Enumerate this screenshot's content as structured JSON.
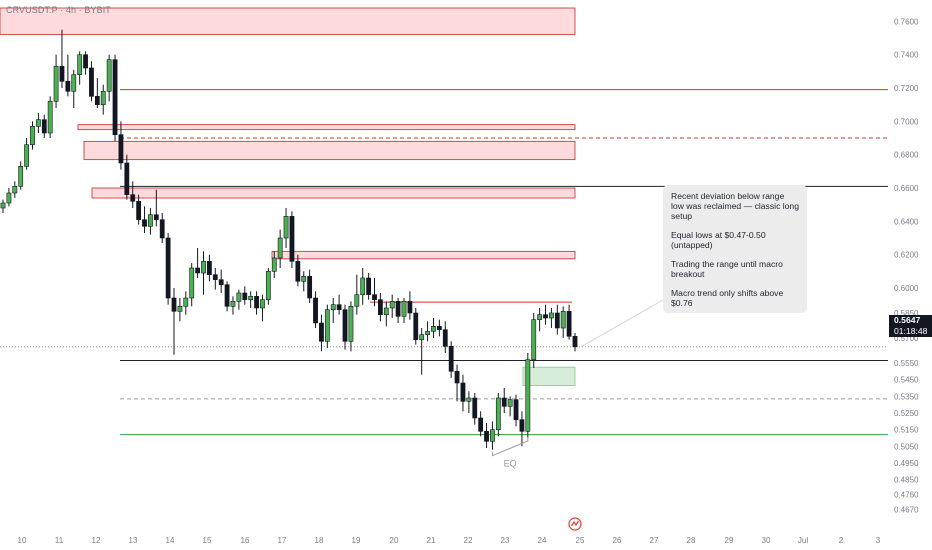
{
  "symbol": "CRVUSDT.P · 4h · BYBIT",
  "colors": {
    "up": "#26a69a",
    "candle_up": "#4caf50",
    "down": "#131722",
    "red_line": "#d32f2f",
    "green_line": "#2e9e3f",
    "zone_red_fill": "rgba(242,54,69,0.18)",
    "zone_green_fill": "rgba(76,175,80,0.22)",
    "last_price": "#131722"
  },
  "annotations": {
    "eq_label": "EQ",
    "callout": [
      "Recent deviation below range low was reclaimed — classic long setup",
      "Equal lows at $0.47-0.50 (untapped)",
      "Trading the range until macro breakout",
      " Macro trend only shifts above $0.76"
    ],
    "last_price": "0.5647",
    "countdown": "01:18:48"
  },
  "chart_data": {
    "type": "candlestick",
    "title": "CRVUSDT.P · 4h · BYBIT",
    "y_axis": {
      "ticks": [
        "0.7600",
        "0.7400",
        "0.7200",
        "0.7000",
        "0.6800",
        "0.6600",
        "0.6400",
        "0.6200",
        "0.6000",
        "0.5850",
        "0.5700",
        "0.5550",
        "0.5450",
        "0.5350",
        "0.5250",
        "0.5150",
        "0.5050",
        "0.4950",
        "0.4850",
        "0.4760",
        "0.4670"
      ],
      "range": [
        0.462,
        0.768
      ]
    },
    "x_axis": {
      "ticks": [
        "10",
        "11",
        "12",
        "13",
        "14",
        "15",
        "16",
        "17",
        "18",
        "19",
        "20",
        "21",
        "22",
        "23",
        "24",
        "25",
        "26",
        "27",
        "28",
        "29",
        "30",
        "Jul",
        "2",
        "3"
      ]
    },
    "grid": false,
    "horizontal_levels": [
      {
        "price": 0.719,
        "style": "solid",
        "color": "red"
      },
      {
        "price": 0.69,
        "style": "dashed",
        "color": "red"
      },
      {
        "price": 0.661,
        "style": "solid",
        "color": "black"
      },
      {
        "price": 0.5565,
        "style": "solid",
        "color": "black"
      },
      {
        "price": 0.5335,
        "style": "dashed",
        "color": "gray"
      },
      {
        "price": 0.512,
        "style": "solid",
        "color": "green"
      },
      {
        "price": 0.5915,
        "style": "solid",
        "color": "red",
        "short": true
      }
    ],
    "zones": [
      {
        "kind": "supply",
        "top": 0.768,
        "bottom": 0.752
      },
      {
        "kind": "supply",
        "top": 0.698,
        "bottom": 0.695
      },
      {
        "kind": "supply",
        "top": 0.688,
        "bottom": 0.677
      },
      {
        "kind": "supply",
        "top": 0.66,
        "bottom": 0.654
      },
      {
        "kind": "supply",
        "top": 0.622,
        "bottom": 0.6175
      },
      {
        "kind": "demand",
        "top": 0.5525,
        "bottom": 0.5415
      }
    ],
    "candles": [
      {
        "o": 0.648,
        "h": 0.653,
        "l": 0.645,
        "c": 0.651
      },
      {
        "o": 0.651,
        "h": 0.66,
        "l": 0.649,
        "c": 0.657
      },
      {
        "o": 0.657,
        "h": 0.664,
        "l": 0.654,
        "c": 0.661
      },
      {
        "o": 0.661,
        "h": 0.676,
        "l": 0.659,
        "c": 0.673
      },
      {
        "o": 0.673,
        "h": 0.69,
        "l": 0.671,
        "c": 0.686
      },
      {
        "o": 0.686,
        "h": 0.7,
        "l": 0.683,
        "c": 0.697
      },
      {
        "o": 0.697,
        "h": 0.705,
        "l": 0.693,
        "c": 0.701
      },
      {
        "o": 0.701,
        "h": 0.704,
        "l": 0.69,
        "c": 0.693
      },
      {
        "o": 0.693,
        "h": 0.715,
        "l": 0.69,
        "c": 0.712
      },
      {
        "o": 0.712,
        "h": 0.74,
        "l": 0.708,
        "c": 0.733
      },
      {
        "o": 0.733,
        "h": 0.755,
        "l": 0.72,
        "c": 0.724
      },
      {
        "o": 0.724,
        "h": 0.74,
        "l": 0.715,
        "c": 0.718
      },
      {
        "o": 0.718,
        "h": 0.731,
        "l": 0.708,
        "c": 0.728
      },
      {
        "o": 0.728,
        "h": 0.742,
        "l": 0.722,
        "c": 0.74
      },
      {
        "o": 0.74,
        "h": 0.742,
        "l": 0.728,
        "c": 0.732
      },
      {
        "o": 0.732,
        "h": 0.736,
        "l": 0.712,
        "c": 0.715
      },
      {
        "o": 0.715,
        "h": 0.726,
        "l": 0.708,
        "c": 0.71
      },
      {
        "o": 0.71,
        "h": 0.722,
        "l": 0.704,
        "c": 0.718
      },
      {
        "o": 0.718,
        "h": 0.74,
        "l": 0.712,
        "c": 0.737
      },
      {
        "o": 0.737,
        "h": 0.74,
        "l": 0.688,
        "c": 0.692
      },
      {
        "o": 0.692,
        "h": 0.7,
        "l": 0.671,
        "c": 0.675
      },
      {
        "o": 0.675,
        "h": 0.68,
        "l": 0.653,
        "c": 0.656
      },
      {
        "o": 0.656,
        "h": 0.664,
        "l": 0.648,
        "c": 0.652
      },
      {
        "o": 0.652,
        "h": 0.656,
        "l": 0.638,
        "c": 0.641
      },
      {
        "o": 0.641,
        "h": 0.649,
        "l": 0.633,
        "c": 0.637
      },
      {
        "o": 0.637,
        "h": 0.648,
        "l": 0.632,
        "c": 0.644
      },
      {
        "o": 0.644,
        "h": 0.659,
        "l": 0.637,
        "c": 0.641
      },
      {
        "o": 0.641,
        "h": 0.645,
        "l": 0.627,
        "c": 0.63
      },
      {
        "o": 0.63,
        "h": 0.633,
        "l": 0.59,
        "c": 0.594
      },
      {
        "o": 0.594,
        "h": 0.6,
        "l": 0.56,
        "c": 0.586
      },
      {
        "o": 0.586,
        "h": 0.594,
        "l": 0.58,
        "c": 0.589
      },
      {
        "o": 0.589,
        "h": 0.598,
        "l": 0.584,
        "c": 0.594
      },
      {
        "o": 0.594,
        "h": 0.615,
        "l": 0.589,
        "c": 0.612
      },
      {
        "o": 0.612,
        "h": 0.624,
        "l": 0.606,
        "c": 0.609
      },
      {
        "o": 0.609,
        "h": 0.622,
        "l": 0.596,
        "c": 0.616
      },
      {
        "o": 0.616,
        "h": 0.62,
        "l": 0.604,
        "c": 0.608
      },
      {
        "o": 0.608,
        "h": 0.612,
        "l": 0.599,
        "c": 0.605
      },
      {
        "o": 0.605,
        "h": 0.611,
        "l": 0.597,
        "c": 0.602
      },
      {
        "o": 0.602,
        "h": 0.604,
        "l": 0.586,
        "c": 0.589
      },
      {
        "o": 0.589,
        "h": 0.595,
        "l": 0.584,
        "c": 0.592
      },
      {
        "o": 0.592,
        "h": 0.599,
        "l": 0.587,
        "c": 0.597
      },
      {
        "o": 0.597,
        "h": 0.601,
        "l": 0.59,
        "c": 0.593
      },
      {
        "o": 0.593,
        "h": 0.598,
        "l": 0.588,
        "c": 0.595
      },
      {
        "o": 0.595,
        "h": 0.598,
        "l": 0.584,
        "c": 0.588
      },
      {
        "o": 0.588,
        "h": 0.596,
        "l": 0.58,
        "c": 0.593
      },
      {
        "o": 0.593,
        "h": 0.612,
        "l": 0.59,
        "c": 0.61
      },
      {
        "o": 0.61,
        "h": 0.622,
        "l": 0.606,
        "c": 0.618
      },
      {
        "o": 0.618,
        "h": 0.635,
        "l": 0.612,
        "c": 0.63
      },
      {
        "o": 0.63,
        "h": 0.648,
        "l": 0.624,
        "c": 0.643
      },
      {
        "o": 0.643,
        "h": 0.646,
        "l": 0.612,
        "c": 0.616
      },
      {
        "o": 0.616,
        "h": 0.62,
        "l": 0.601,
        "c": 0.604
      },
      {
        "o": 0.604,
        "h": 0.61,
        "l": 0.598,
        "c": 0.607
      },
      {
        "o": 0.607,
        "h": 0.611,
        "l": 0.591,
        "c": 0.594
      },
      {
        "o": 0.594,
        "h": 0.598,
        "l": 0.576,
        "c": 0.579
      },
      {
        "o": 0.579,
        "h": 0.584,
        "l": 0.562,
        "c": 0.568
      },
      {
        "o": 0.568,
        "h": 0.59,
        "l": 0.564,
        "c": 0.587
      },
      {
        "o": 0.587,
        "h": 0.594,
        "l": 0.579,
        "c": 0.59
      },
      {
        "o": 0.59,
        "h": 0.596,
        "l": 0.584,
        "c": 0.587
      },
      {
        "o": 0.587,
        "h": 0.59,
        "l": 0.563,
        "c": 0.568
      },
      {
        "o": 0.568,
        "h": 0.592,
        "l": 0.562,
        "c": 0.589
      },
      {
        "o": 0.589,
        "h": 0.608,
        "l": 0.584,
        "c": 0.596
      },
      {
        "o": 0.596,
        "h": 0.612,
        "l": 0.59,
        "c": 0.606
      },
      {
        "o": 0.606,
        "h": 0.609,
        "l": 0.593,
        "c": 0.596
      },
      {
        "o": 0.596,
        "h": 0.606,
        "l": 0.589,
        "c": 0.593
      },
      {
        "o": 0.593,
        "h": 0.597,
        "l": 0.58,
        "c": 0.584
      },
      {
        "o": 0.584,
        "h": 0.592,
        "l": 0.577,
        "c": 0.588
      },
      {
        "o": 0.588,
        "h": 0.596,
        "l": 0.582,
        "c": 0.592
      },
      {
        "o": 0.592,
        "h": 0.594,
        "l": 0.579,
        "c": 0.583
      },
      {
        "o": 0.583,
        "h": 0.594,
        "l": 0.579,
        "c": 0.592
      },
      {
        "o": 0.592,
        "h": 0.598,
        "l": 0.581,
        "c": 0.585
      },
      {
        "o": 0.585,
        "h": 0.588,
        "l": 0.566,
        "c": 0.569
      },
      {
        "o": 0.569,
        "h": 0.576,
        "l": 0.548,
        "c": 0.572
      },
      {
        "o": 0.572,
        "h": 0.58,
        "l": 0.568,
        "c": 0.574
      },
      {
        "o": 0.574,
        "h": 0.582,
        "l": 0.57,
        "c": 0.577
      },
      {
        "o": 0.577,
        "h": 0.581,
        "l": 0.571,
        "c": 0.575
      },
      {
        "o": 0.575,
        "h": 0.58,
        "l": 0.561,
        "c": 0.565
      },
      {
        "o": 0.565,
        "h": 0.568,
        "l": 0.546,
        "c": 0.55
      },
      {
        "o": 0.55,
        "h": 0.554,
        "l": 0.532,
        "c": 0.543
      },
      {
        "o": 0.543,
        "h": 0.548,
        "l": 0.526,
        "c": 0.532
      },
      {
        "o": 0.532,
        "h": 0.538,
        "l": 0.525,
        "c": 0.534
      },
      {
        "o": 0.534,
        "h": 0.537,
        "l": 0.518,
        "c": 0.522
      },
      {
        "o": 0.522,
        "h": 0.526,
        "l": 0.511,
        "c": 0.514
      },
      {
        "o": 0.514,
        "h": 0.519,
        "l": 0.504,
        "c": 0.508
      },
      {
        "o": 0.508,
        "h": 0.52,
        "l": 0.503,
        "c": 0.515
      },
      {
        "o": 0.515,
        "h": 0.537,
        "l": 0.511,
        "c": 0.534
      },
      {
        "o": 0.534,
        "h": 0.54,
        "l": 0.525,
        "c": 0.529
      },
      {
        "o": 0.529,
        "h": 0.535,
        "l": 0.523,
        "c": 0.533
      },
      {
        "o": 0.533,
        "h": 0.536,
        "l": 0.517,
        "c": 0.521
      },
      {
        "o": 0.521,
        "h": 0.526,
        "l": 0.505,
        "c": 0.514
      },
      {
        "o": 0.514,
        "h": 0.561,
        "l": 0.51,
        "c": 0.557
      },
      {
        "o": 0.557,
        "h": 0.585,
        "l": 0.552,
        "c": 0.581
      },
      {
        "o": 0.581,
        "h": 0.588,
        "l": 0.574,
        "c": 0.584
      },
      {
        "o": 0.584,
        "h": 0.59,
        "l": 0.578,
        "c": 0.582
      },
      {
        "o": 0.582,
        "h": 0.588,
        "l": 0.576,
        "c": 0.585
      },
      {
        "o": 0.585,
        "h": 0.59,
        "l": 0.572,
        "c": 0.576
      },
      {
        "o": 0.576,
        "h": 0.589,
        "l": 0.57,
        "c": 0.586
      },
      {
        "o": 0.586,
        "h": 0.59,
        "l": 0.569,
        "c": 0.571
      },
      {
        "o": 0.571,
        "h": 0.573,
        "l": 0.562,
        "c": 0.5647
      }
    ]
  }
}
